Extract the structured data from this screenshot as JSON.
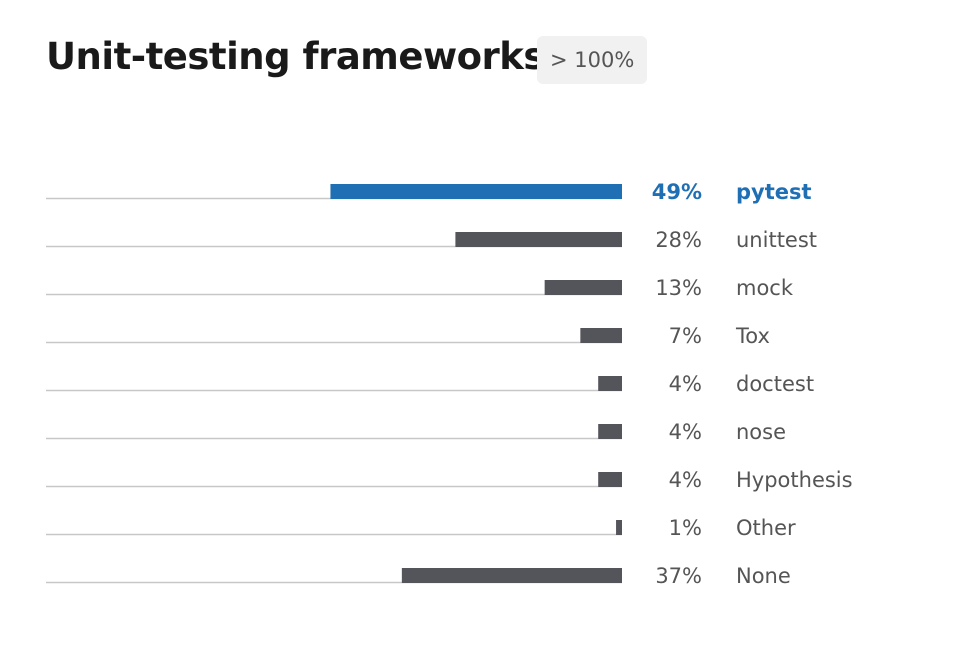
{
  "title": "Unit-testing frameworks",
  "badge": "> 100%",
  "colors": {
    "highlight": "#1f6fb5",
    "bar": "#54555a",
    "track": "#c8c8c8",
    "text": "#555555",
    "title": "#1a1a1a"
  },
  "chart_data": {
    "type": "bar",
    "orientation": "horizontal",
    "title": "Unit-testing frameworks",
    "subtitle": "> 100%",
    "value_unit": "%",
    "xlim": [
      0,
      100
    ],
    "grid": false,
    "legend": "none",
    "highlight_index": 0,
    "categories": [
      "pytest",
      "unittest",
      "mock",
      "Tox",
      "doctest",
      "nose",
      "Hypothesis",
      "Other",
      "None"
    ],
    "values": [
      49,
      28,
      13,
      7,
      4,
      4,
      4,
      1,
      37
    ],
    "value_labels": [
      "49%",
      "28%",
      "13%",
      "7%",
      "4%",
      "4%",
      "4%",
      "1%",
      "37%"
    ]
  }
}
